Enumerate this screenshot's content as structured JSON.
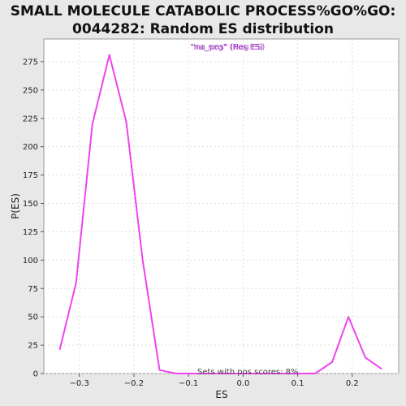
{
  "chart_data": {
    "type": "line",
    "title_line1": "SMALL MOLECULE CATABOLIC PROCESS%GO%GO:",
    "title_line2": "0044282: Random ES distribution",
    "xlabel": "ES",
    "ylabel": "P(ES)",
    "xlim": [
      -0.365,
      0.285
    ],
    "ylim": [
      0,
      295
    ],
    "x_ticks": [
      -0.3,
      -0.2,
      -0.1,
      0.0,
      0.1,
      0.2
    ],
    "x_tick_labels": [
      "−0.3",
      "−0.2",
      "−0.1",
      "0.0",
      "0.1",
      "0.2"
    ],
    "y_ticks": [
      0,
      25,
      50,
      75,
      100,
      125,
      150,
      175,
      200,
      225,
      250,
      275
    ],
    "y_tick_labels": [
      "0",
      "25",
      "50",
      "75",
      "100",
      "125",
      "150",
      "175",
      "200",
      "225",
      "250",
      "275"
    ],
    "grid": true,
    "legend": {
      "placement": "top-center",
      "entries": [
        {
          "text": "\"na_neg\" (Neg ES)",
          "color": "#cc44cc"
        },
        {
          "text": "\"na_pos\" (Pos ES)",
          "color": "#7733bb"
        }
      ]
    },
    "annotation": "Sets with pos scores: 8%",
    "series": [
      {
        "color": "#ee44ee",
        "x": [
          -0.336,
          -0.306,
          -0.276,
          -0.245,
          -0.214,
          -0.184,
          -0.153,
          -0.122,
          -0.092,
          -0.061,
          -0.031,
          0.0,
          0.031,
          0.061,
          0.102,
          0.132,
          0.163,
          0.193,
          0.224,
          0.254
        ],
        "y": [
          21,
          80,
          220,
          281,
          222,
          100,
          3,
          0,
          0,
          0,
          0,
          0,
          0,
          0,
          0,
          0,
          10,
          50,
          14,
          4
        ]
      }
    ]
  }
}
